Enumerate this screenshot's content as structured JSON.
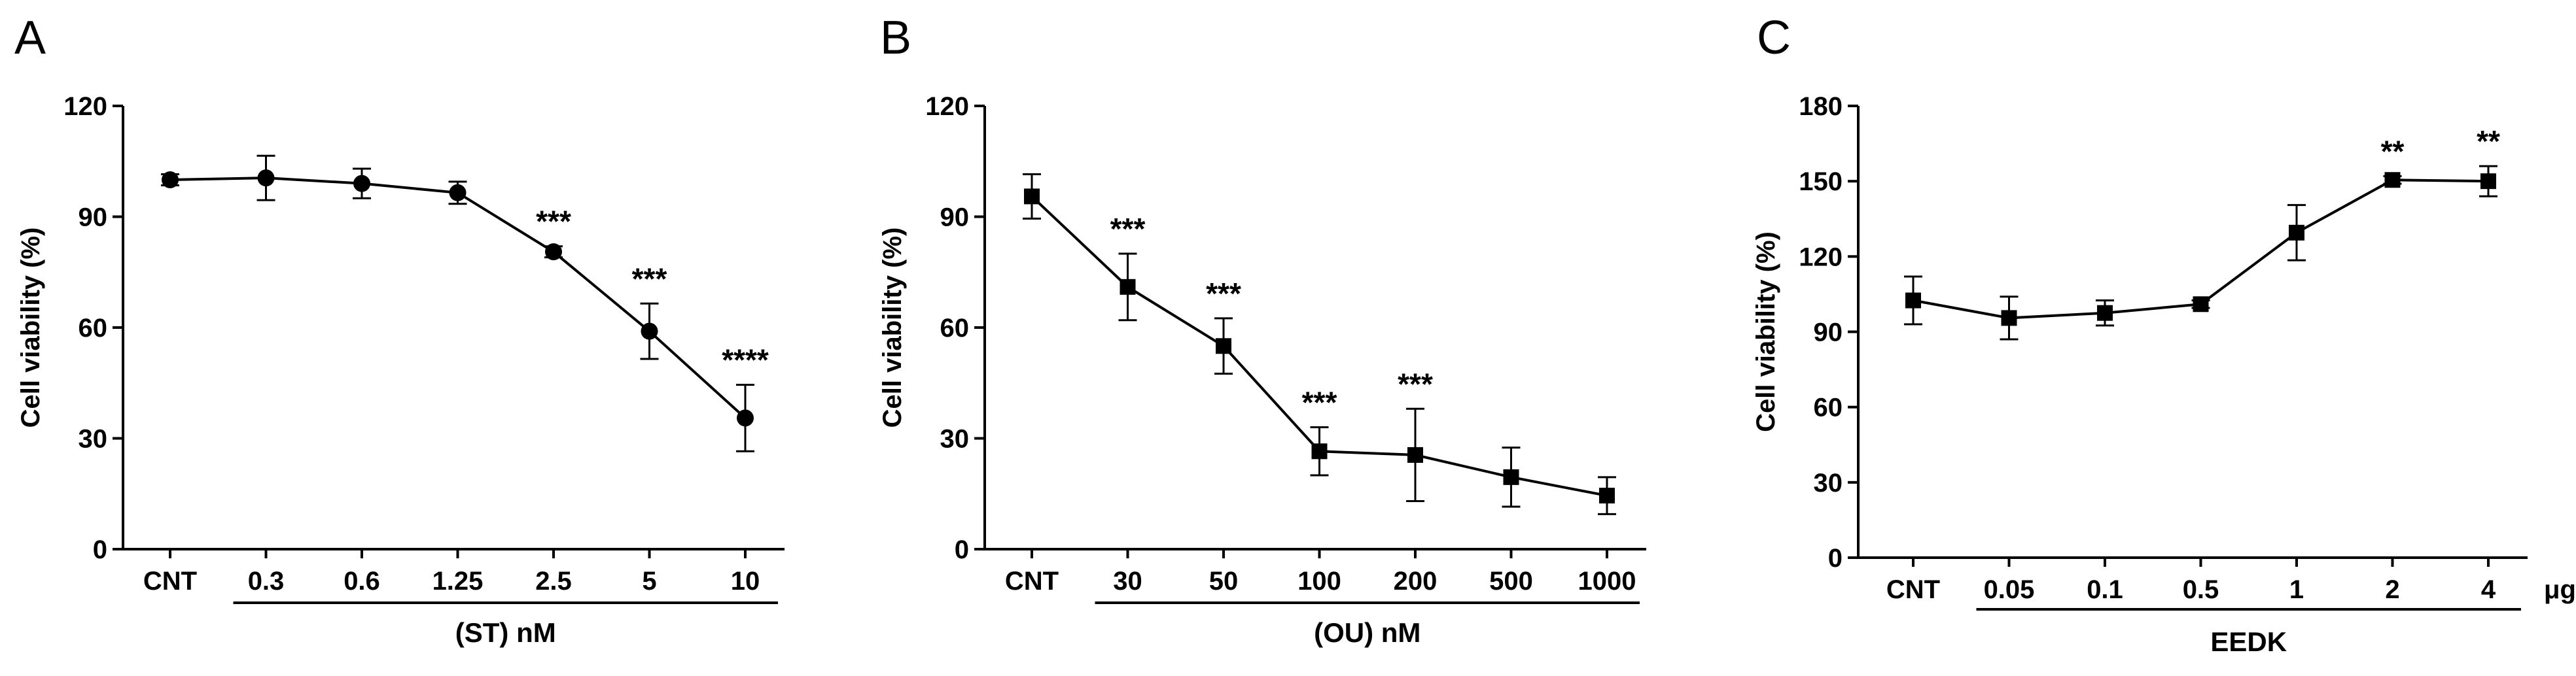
{
  "chart_data": [
    {
      "panel": "A",
      "type": "line",
      "title": "",
      "ylabel": "Cell viability (%)",
      "xlabel": "(ST) nM",
      "ylim": [
        0,
        120
      ],
      "yticks": [
        0,
        30,
        60,
        90,
        120
      ],
      "categories": [
        "CNT",
        "0.3",
        "0.6",
        "1.25",
        "2.5",
        "5",
        "10"
      ],
      "marker": "circle",
      "values": [
        100,
        100.5,
        99,
        96.5,
        80.5,
        59,
        35.5
      ],
      "errors": [
        1.5,
        6,
        4,
        3,
        1.5,
        7.5,
        9
      ],
      "significance": [
        "",
        "",
        "",
        "",
        "***",
        "***",
        "****"
      ],
      "group_span": [
        1,
        6
      ],
      "unit": ""
    },
    {
      "panel": "B",
      "type": "line",
      "title": "",
      "ylabel": "Cell viability (%)",
      "xlabel": "(OU) nM",
      "ylim": [
        0,
        120
      ],
      "yticks": [
        0,
        30,
        60,
        90,
        120
      ],
      "categories": [
        "CNT",
        "30",
        "50",
        "100",
        "200",
        "500",
        "1000"
      ],
      "marker": "square",
      "values": [
        95.5,
        71,
        55,
        26.5,
        25.5,
        19.5,
        14.5
      ],
      "errors": [
        6,
        9,
        7.5,
        6.5,
        12.5,
        8,
        5
      ],
      "significance": [
        "",
        "***",
        "***",
        "***",
        "***",
        "",
        ""
      ],
      "group_span": [
        1,
        6
      ],
      "unit": ""
    },
    {
      "panel": "C",
      "type": "line",
      "title": "",
      "ylabel": "Cell viability (%)",
      "xlabel": "EEDK",
      "ylim": [
        0,
        180
      ],
      "yticks": [
        0,
        30,
        60,
        90,
        120,
        150,
        180
      ],
      "categories": [
        "CNT",
        "0.05",
        "0.1",
        "0.5",
        "1",
        "2",
        "4"
      ],
      "marker": "square",
      "values": [
        102.5,
        95.5,
        97.5,
        101,
        129.5,
        150.5,
        150
      ],
      "errors": [
        9.5,
        8.5,
        5,
        1.5,
        11,
        1.5,
        6
      ],
      "significance": [
        "",
        "",
        "",
        "",
        "",
        "**",
        "**"
      ],
      "group_span": [
        1,
        6
      ],
      "unit": "μg/mL"
    }
  ]
}
